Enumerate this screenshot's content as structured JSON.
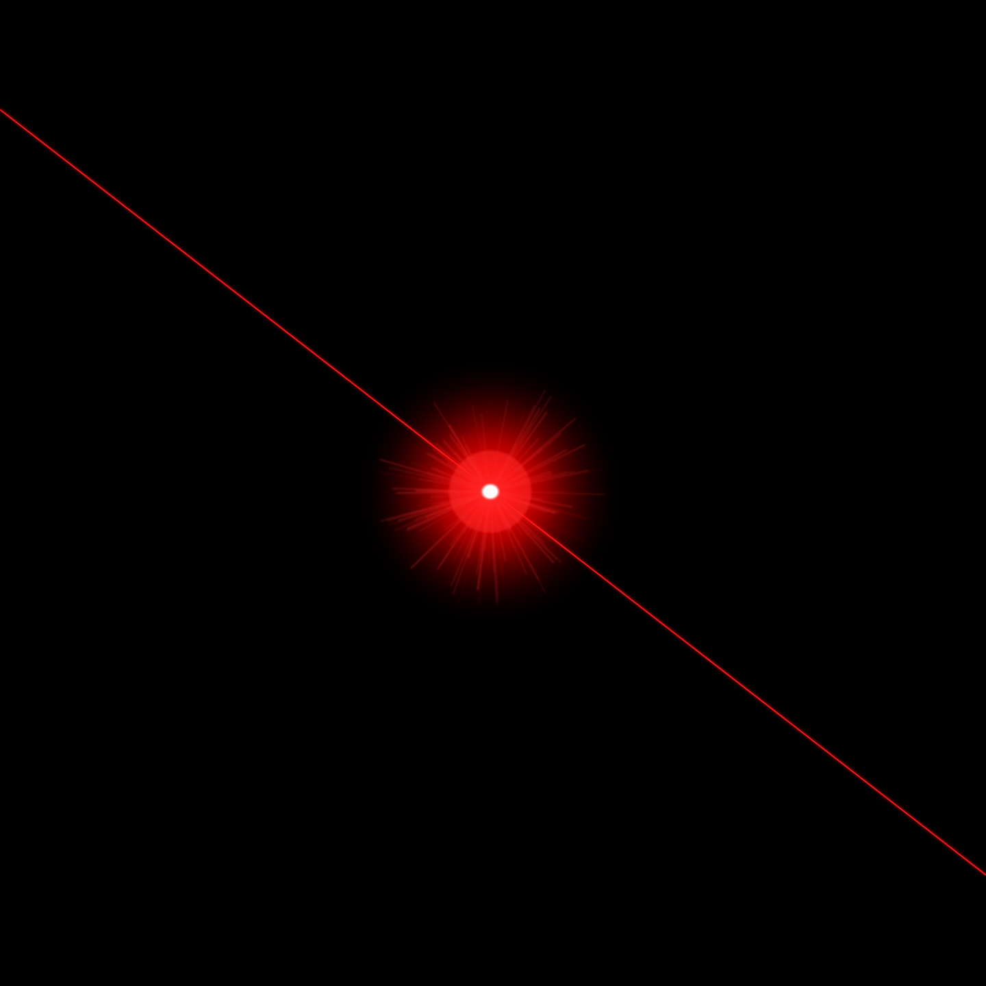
{
  "scene": {
    "description_label": "",
    "colors": {
      "background": "#000000",
      "beam": "#ff1010",
      "beam_core": "#ff3a3a",
      "glow_inner": "#ff0000",
      "glow_mid": "#c00000",
      "core": "#ffffff"
    },
    "elements": {
      "beam": "laser-beam",
      "glow": "red-glow-halo",
      "rays": "starburst-rays",
      "core": "white-hot-core"
    }
  }
}
